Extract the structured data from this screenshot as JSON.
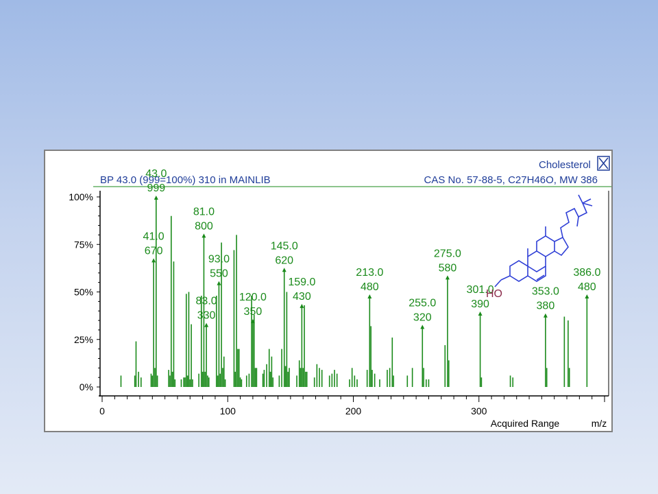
{
  "header": {
    "compound_name": "Cholesterol",
    "bp_info": "BP 43.0 (999=100%) 310 in MAINLIB",
    "cas_info": "CAS No. 57-88-5, C27H46O, MW 386"
  },
  "structure": {
    "ho_label": "HO"
  },
  "chart_data": {
    "type": "bar",
    "title": "",
    "xlabel": "m/z",
    "x_range_label": "Acquired Range",
    "ylabel": "",
    "xlim": [
      0,
      400
    ],
    "ylim": [
      0,
      100
    ],
    "xticks": [
      0,
      100,
      200,
      300
    ],
    "yticks": [
      "0%",
      "25%",
      "50%",
      "75%",
      "100%"
    ],
    "ytick_values": [
      0,
      25,
      50,
      75,
      100
    ],
    "grid": false,
    "color": "#1a8a1a",
    "peaks": [
      {
        "mz": 15,
        "pct": 6
      },
      {
        "mz": 26,
        "pct": 6
      },
      {
        "mz": 27,
        "pct": 24
      },
      {
        "mz": 29,
        "pct": 8
      },
      {
        "mz": 31,
        "pct": 5
      },
      {
        "mz": 39,
        "pct": 7
      },
      {
        "mz": 40,
        "pct": 6
      },
      {
        "mz": 41,
        "pct": 67
      },
      {
        "mz": 42,
        "pct": 10
      },
      {
        "mz": 43,
        "pct": 100
      },
      {
        "mz": 44,
        "pct": 6
      },
      {
        "mz": 53,
        "pct": 9
      },
      {
        "mz": 54,
        "pct": 6
      },
      {
        "mz": 55,
        "pct": 90
      },
      {
        "mz": 56,
        "pct": 8
      },
      {
        "mz": 57,
        "pct": 66
      },
      {
        "mz": 58,
        "pct": 4
      },
      {
        "mz": 63,
        "pct": 4
      },
      {
        "mz": 65,
        "pct": 5
      },
      {
        "mz": 66,
        "pct": 5
      },
      {
        "mz": 67,
        "pct": 49
      },
      {
        "mz": 68,
        "pct": 6
      },
      {
        "mz": 69,
        "pct": 50
      },
      {
        "mz": 70,
        "pct": 4
      },
      {
        "mz": 71,
        "pct": 33
      },
      {
        "mz": 72,
        "pct": 4
      },
      {
        "mz": 77,
        "pct": 7
      },
      {
        "mz": 79,
        "pct": 48
      },
      {
        "mz": 80,
        "pct": 8
      },
      {
        "mz": 81,
        "pct": 80
      },
      {
        "mz": 82,
        "pct": 8
      },
      {
        "mz": 83,
        "pct": 33
      },
      {
        "mz": 84,
        "pct": 6
      },
      {
        "mz": 85,
        "pct": 5
      },
      {
        "mz": 91,
        "pct": 48
      },
      {
        "mz": 92,
        "pct": 6
      },
      {
        "mz": 93,
        "pct": 55
      },
      {
        "mz": 94,
        "pct": 7
      },
      {
        "mz": 95,
        "pct": 76
      },
      {
        "mz": 96,
        "pct": 10
      },
      {
        "mz": 97,
        "pct": 16
      },
      {
        "mz": 98,
        "pct": 4
      },
      {
        "mz": 105,
        "pct": 72
      },
      {
        "mz": 106,
        "pct": 8
      },
      {
        "mz": 107,
        "pct": 80
      },
      {
        "mz": 108,
        "pct": 20
      },
      {
        "mz": 109,
        "pct": 20
      },
      {
        "mz": 110,
        "pct": 5
      },
      {
        "mz": 111,
        "pct": 4
      },
      {
        "mz": 115,
        "pct": 6
      },
      {
        "mz": 117,
        "pct": 7
      },
      {
        "mz": 119,
        "pct": 48
      },
      {
        "mz": 120,
        "pct": 35
      },
      {
        "mz": 121,
        "pct": 38
      },
      {
        "mz": 122,
        "pct": 10
      },
      {
        "mz": 123,
        "pct": 10
      },
      {
        "mz": 128,
        "pct": 7
      },
      {
        "mz": 129,
        "pct": 9
      },
      {
        "mz": 131,
        "pct": 12
      },
      {
        "mz": 133,
        "pct": 20
      },
      {
        "mz": 134,
        "pct": 8
      },
      {
        "mz": 135,
        "pct": 16
      },
      {
        "mz": 136,
        "pct": 5
      },
      {
        "mz": 141,
        "pct": 6
      },
      {
        "mz": 143,
        "pct": 20
      },
      {
        "mz": 145,
        "pct": 62
      },
      {
        "mz": 146,
        "pct": 11
      },
      {
        "mz": 147,
        "pct": 50
      },
      {
        "mz": 148,
        "pct": 8
      },
      {
        "mz": 149,
        "pct": 10
      },
      {
        "mz": 155,
        "pct": 6
      },
      {
        "mz": 157,
        "pct": 14
      },
      {
        "mz": 158,
        "pct": 10
      },
      {
        "mz": 159,
        "pct": 43
      },
      {
        "mz": 160,
        "pct": 10
      },
      {
        "mz": 161,
        "pct": 43
      },
      {
        "mz": 162,
        "pct": 8
      },
      {
        "mz": 163,
        "pct": 8
      },
      {
        "mz": 169,
        "pct": 5
      },
      {
        "mz": 171,
        "pct": 12
      },
      {
        "mz": 173,
        "pct": 10
      },
      {
        "mz": 175,
        "pct": 9
      },
      {
        "mz": 181,
        "pct": 6
      },
      {
        "mz": 183,
        "pct": 7
      },
      {
        "mz": 185,
        "pct": 9
      },
      {
        "mz": 187,
        "pct": 7
      },
      {
        "mz": 197,
        "pct": 4
      },
      {
        "mz": 199,
        "pct": 10
      },
      {
        "mz": 201,
        "pct": 6
      },
      {
        "mz": 203,
        "pct": 4
      },
      {
        "mz": 211,
        "pct": 9
      },
      {
        "mz": 213,
        "pct": 48
      },
      {
        "mz": 214,
        "pct": 32
      },
      {
        "mz": 215,
        "pct": 9
      },
      {
        "mz": 217,
        "pct": 7
      },
      {
        "mz": 221,
        "pct": 4
      },
      {
        "mz": 227,
        "pct": 9
      },
      {
        "mz": 229,
        "pct": 10
      },
      {
        "mz": 231,
        "pct": 26
      },
      {
        "mz": 232,
        "pct": 6
      },
      {
        "mz": 243,
        "pct": 6
      },
      {
        "mz": 247,
        "pct": 10
      },
      {
        "mz": 255,
        "pct": 32
      },
      {
        "mz": 256,
        "pct": 10
      },
      {
        "mz": 258,
        "pct": 4
      },
      {
        "mz": 260,
        "pct": 4
      },
      {
        "mz": 273,
        "pct": 22
      },
      {
        "mz": 275,
        "pct": 58
      },
      {
        "mz": 276,
        "pct": 14
      },
      {
        "mz": 301,
        "pct": 39
      },
      {
        "mz": 302,
        "pct": 5
      },
      {
        "mz": 325,
        "pct": 6
      },
      {
        "mz": 327,
        "pct": 5
      },
      {
        "mz": 353,
        "pct": 38
      },
      {
        "mz": 354,
        "pct": 10
      },
      {
        "mz": 368,
        "pct": 37
      },
      {
        "mz": 371,
        "pct": 35
      },
      {
        "mz": 372,
        "pct": 10
      },
      {
        "mz": 386,
        "pct": 48
      }
    ],
    "labels": [
      {
        "mz": "43.0",
        "abundance": "999",
        "x": 43,
        "pct": 100
      },
      {
        "mz": "41.0",
        "abundance": "670",
        "x": 41,
        "pct": 67
      },
      {
        "mz": "81.0",
        "abundance": "800",
        "x": 81,
        "pct": 80
      },
      {
        "mz": "93.0",
        "abundance": "550",
        "x": 93,
        "pct": 55
      },
      {
        "mz": "83.0",
        "abundance": "330",
        "x": 83,
        "pct": 33
      },
      {
        "mz": "120.0",
        "abundance": "350",
        "x": 120,
        "pct": 35
      },
      {
        "mz": "145.0",
        "abundance": "620",
        "x": 145,
        "pct": 62
      },
      {
        "mz": "159.0",
        "abundance": "430",
        "x": 159,
        "pct": 43
      },
      {
        "mz": "213.0",
        "abundance": "480",
        "x": 213,
        "pct": 48
      },
      {
        "mz": "255.0",
        "abundance": "320",
        "x": 255,
        "pct": 32
      },
      {
        "mz": "275.0",
        "abundance": "580",
        "x": 275,
        "pct": 58
      },
      {
        "mz": "301.0",
        "abundance": "390",
        "x": 301,
        "pct": 39
      },
      {
        "mz": "353.0",
        "abundance": "380",
        "x": 353,
        "pct": 38
      },
      {
        "mz": "386.0",
        "abundance": "480",
        "x": 386,
        "pct": 48
      }
    ]
  }
}
